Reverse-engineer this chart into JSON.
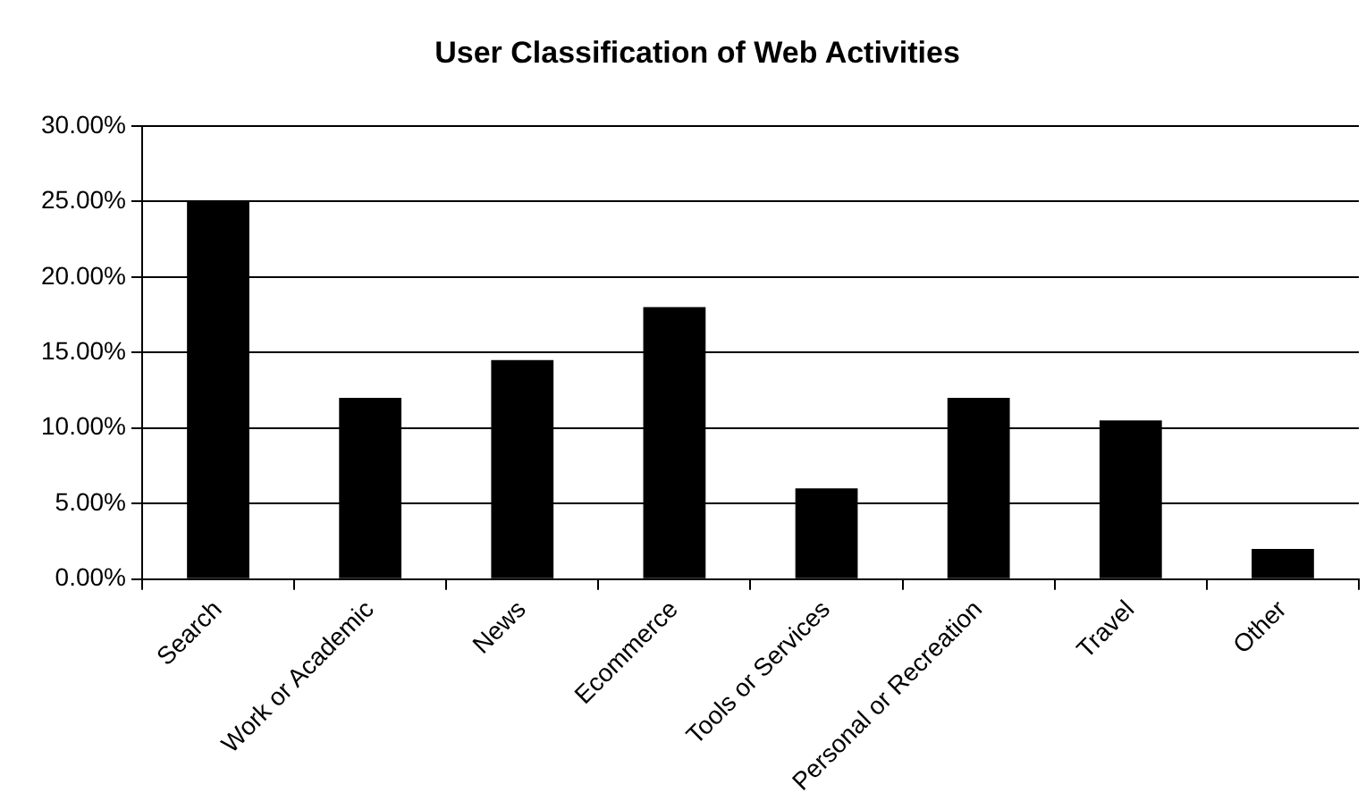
{
  "chart_data": {
    "type": "bar",
    "title": "User Classification of Web Activities",
    "categories": [
      "Search",
      "Work or Academic",
      "News",
      "Ecommerce",
      "Tools or Services",
      "Personal or Recreation",
      "Travel",
      "Other"
    ],
    "values": [
      25,
      12,
      14.5,
      18,
      6,
      12,
      10.5,
      2
    ],
    "color": "#000000",
    "ylim": [
      0,
      30
    ],
    "yticks": [
      {
        "value": 0,
        "label": "0.00%"
      },
      {
        "value": 5,
        "label": "5.00%"
      },
      {
        "value": 10,
        "label": "10.00%"
      },
      {
        "value": 15,
        "label": "15.00%"
      },
      {
        "value": 20,
        "label": "20.00%"
      },
      {
        "value": 25,
        "label": "25.00%"
      },
      {
        "value": 30,
        "label": "30.00%"
      }
    ],
    "grid": "y",
    "legend": false
  }
}
